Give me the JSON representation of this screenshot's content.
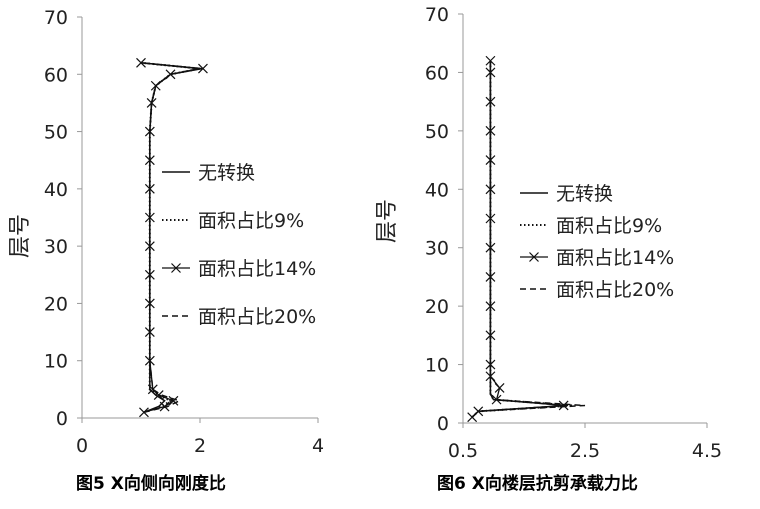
{
  "chart_data": [
    {
      "type": "line",
      "title": "",
      "caption": "图5  X向侧向刚度比",
      "xlabel": "",
      "ylabel": "层号",
      "xlim": [
        0,
        4
      ],
      "ylim": [
        0,
        70
      ],
      "xticks": [
        "0",
        "2",
        "4"
      ],
      "yticks": [
        "0",
        "10",
        "20",
        "30",
        "40",
        "50",
        "60",
        "70"
      ],
      "legend_position": "center",
      "grid": false,
      "series": [
        {
          "name": "无转换",
          "style": "solid",
          "points": [
            [
              1.05,
              1
            ],
            [
              1.3,
              2
            ],
            [
              1.4,
              3
            ],
            [
              1.25,
              4
            ],
            [
              1.15,
              5
            ],
            [
              1.15,
              10
            ],
            [
              1.15,
              20
            ],
            [
              1.15,
              30
            ],
            [
              1.15,
              40
            ],
            [
              1.15,
              50
            ],
            [
              1.18,
              55
            ],
            [
              1.25,
              58
            ],
            [
              1.5,
              60
            ],
            [
              2.0,
              61
            ],
            [
              1.0,
              62
            ]
          ]
        },
        {
          "name": "面积占比9%",
          "style": "dotted",
          "points": [
            [
              1.05,
              1
            ],
            [
              1.35,
              2
            ],
            [
              1.5,
              3
            ],
            [
              1.3,
              4
            ],
            [
              1.15,
              5
            ],
            [
              1.15,
              10
            ],
            [
              1.15,
              20
            ],
            [
              1.15,
              30
            ],
            [
              1.15,
              40
            ],
            [
              1.15,
              50
            ],
            [
              1.18,
              55
            ],
            [
              1.25,
              58
            ],
            [
              1.5,
              60
            ],
            [
              2.0,
              61
            ],
            [
              1.0,
              62
            ]
          ]
        },
        {
          "name": "面积占比14%",
          "style": "cross",
          "points": [
            [
              1.05,
              1
            ],
            [
              1.4,
              2
            ],
            [
              1.55,
              3
            ],
            [
              1.3,
              4
            ],
            [
              1.2,
              5
            ],
            [
              1.15,
              10
            ],
            [
              1.15,
              15
            ],
            [
              1.15,
              20
            ],
            [
              1.15,
              25
            ],
            [
              1.15,
              30
            ],
            [
              1.15,
              35
            ],
            [
              1.15,
              40
            ],
            [
              1.15,
              45
            ],
            [
              1.15,
              50
            ],
            [
              1.18,
              55
            ],
            [
              1.25,
              58
            ],
            [
              1.5,
              60
            ],
            [
              2.05,
              61
            ],
            [
              1.0,
              62
            ]
          ]
        },
        {
          "name": "面积占比20%",
          "style": "dashed",
          "points": [
            [
              1.05,
              1
            ],
            [
              1.45,
              2
            ],
            [
              1.65,
              3
            ],
            [
              1.35,
              4
            ],
            [
              1.2,
              5
            ],
            [
              1.15,
              10
            ],
            [
              1.15,
              20
            ],
            [
              1.15,
              30
            ],
            [
              1.15,
              40
            ],
            [
              1.15,
              50
            ],
            [
              1.18,
              55
            ],
            [
              1.25,
              58
            ],
            [
              1.5,
              60
            ],
            [
              2.0,
              61
            ],
            [
              1.0,
              62
            ]
          ]
        }
      ]
    },
    {
      "type": "line",
      "title": "",
      "caption": "图6  X向楼层抗剪承载力比",
      "xlabel": "",
      "ylabel": "层号",
      "xlim": [
        0.5,
        4.5
      ],
      "ylim": [
        0,
        70
      ],
      "xticks": [
        "0.5",
        "2.5",
        "4.5"
      ],
      "yticks": [
        "0",
        "10",
        "20",
        "30",
        "40",
        "50",
        "60",
        "70"
      ],
      "legend_position": "center",
      "grid": false,
      "series": [
        {
          "name": "无转换",
          "style": "solid",
          "points": [
            [
              0.65,
              1
            ],
            [
              0.75,
              2
            ],
            [
              2.2,
              3
            ],
            [
              1.0,
              4
            ],
            [
              0.95,
              5
            ],
            [
              0.95,
              6
            ],
            [
              0.95,
              10
            ],
            [
              0.95,
              20
            ],
            [
              0.95,
              30
            ],
            [
              0.95,
              40
            ],
            [
              0.95,
              50
            ],
            [
              0.95,
              60
            ],
            [
              0.95,
              62
            ]
          ]
        },
        {
          "name": "面积占比9%",
          "style": "dotted",
          "points": [
            [
              0.65,
              1
            ],
            [
              0.75,
              2
            ],
            [
              2.3,
              3
            ],
            [
              1.0,
              4
            ],
            [
              0.95,
              5
            ],
            [
              0.95,
              6
            ],
            [
              0.95,
              10
            ],
            [
              0.95,
              20
            ],
            [
              0.95,
              30
            ],
            [
              0.95,
              40
            ],
            [
              0.95,
              50
            ],
            [
              0.95,
              60
            ],
            [
              0.95,
              62
            ]
          ]
        },
        {
          "name": "面积占比14%",
          "style": "cross",
          "points": [
            [
              0.65,
              1
            ],
            [
              0.75,
              2
            ],
            [
              2.15,
              3
            ],
            [
              1.05,
              4
            ],
            [
              1.1,
              6
            ],
            [
              0.95,
              8
            ],
            [
              0.95,
              10
            ],
            [
              0.95,
              15
            ],
            [
              0.95,
              20
            ],
            [
              0.95,
              25
            ],
            [
              0.95,
              30
            ],
            [
              0.95,
              35
            ],
            [
              0.95,
              40
            ],
            [
              0.95,
              45
            ],
            [
              0.95,
              50
            ],
            [
              0.95,
              55
            ],
            [
              0.95,
              60
            ],
            [
              0.95,
              62
            ]
          ]
        },
        {
          "name": "面积占比20%",
          "style": "dashed",
          "points": [
            [
              0.65,
              1
            ],
            [
              0.75,
              2
            ],
            [
              2.5,
              3
            ],
            [
              1.0,
              4
            ],
            [
              0.95,
              5
            ],
            [
              0.95,
              6
            ],
            [
              0.95,
              10
            ],
            [
              0.95,
              20
            ],
            [
              0.95,
              30
            ],
            [
              0.95,
              40
            ],
            [
              0.95,
              50
            ],
            [
              0.95,
              60
            ],
            [
              0.95,
              62
            ]
          ]
        }
      ]
    }
  ]
}
